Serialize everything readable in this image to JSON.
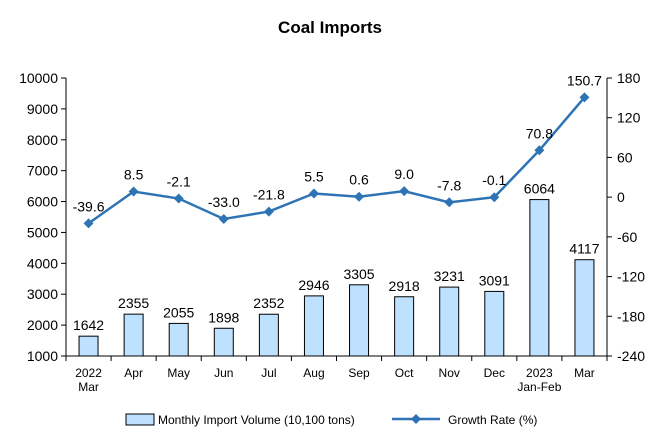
{
  "chart_data": {
    "type": "bar",
    "title": "Coal Imports",
    "categories": [
      [
        "2022",
        "Mar"
      ],
      [
        "Apr"
      ],
      [
        "May"
      ],
      [
        "Jun"
      ],
      [
        "Jul"
      ],
      [
        "Aug"
      ],
      [
        "Sep"
      ],
      [
        "Oct"
      ],
      [
        "Nov"
      ],
      [
        "Dec"
      ],
      [
        "2023",
        "Jan-Feb"
      ],
      [
        "Mar"
      ]
    ],
    "series": [
      {
        "name": "Monthly Import Volume (10,100 tons)",
        "type": "bar",
        "axis": "left",
        "values": [
          1642,
          2355,
          2055,
          1898,
          2352,
          2946,
          3305,
          2918,
          3231,
          3091,
          6064,
          4117
        ],
        "labels": [
          "1642",
          "2355",
          "2055",
          "1898",
          "2352",
          "2946",
          "3305",
          "2918",
          "3231",
          "3091",
          "6064",
          "4117"
        ],
        "fill": "#bde1ff",
        "stroke": "#000000"
      },
      {
        "name": "Growth Rate (%)",
        "type": "line",
        "axis": "right",
        "values": [
          -39.6,
          8.5,
          -2.1,
          -33.0,
          -21.8,
          5.5,
          0.6,
          9.0,
          -7.8,
          -0.1,
          70.8,
          150.7
        ],
        "labels": [
          "-39.6",
          "8.5",
          "-2.1",
          "-33.0",
          "-21.8",
          "5.5",
          "0.6",
          "9.0",
          "-7.8",
          "-0.1",
          "70.8",
          "150.7"
        ],
        "color": "#2e74b5",
        "marker": "diamond"
      }
    ],
    "y_left": {
      "min": 1000,
      "max": 10000,
      "ticks": [
        "1000",
        "2000",
        "3000",
        "4000",
        "5000",
        "6000",
        "7000",
        "8000",
        "9000",
        "10000"
      ]
    },
    "y_right": {
      "min": -240,
      "max": 180,
      "ticks": [
        "-240",
        "-180",
        "-120",
        "-60",
        "0",
        "60",
        "120",
        "180"
      ]
    },
    "grid": false,
    "legend_position": "bottom"
  }
}
